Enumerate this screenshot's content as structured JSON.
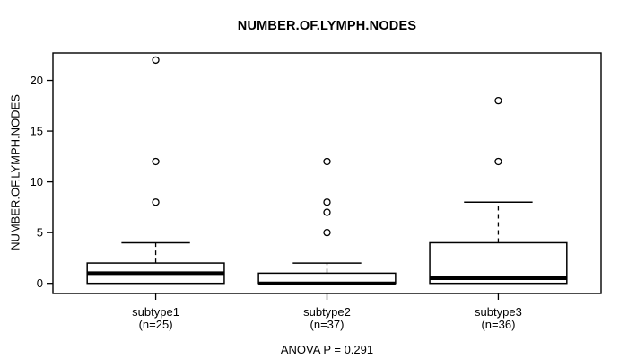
{
  "chart_data": {
    "type": "boxplot",
    "title": "NUMBER.OF.LYMPH.NODES",
    "ylabel": "NUMBER.OF.LYMPH.NODES",
    "annotation": "ANOVA P = 0.291",
    "ylim": [
      -1,
      22.7
    ],
    "yticks": [
      0,
      5,
      10,
      15,
      20
    ],
    "xlim": [
      0.4,
      3.6
    ],
    "box_width": 0.8,
    "cap_width": 0.4,
    "grid": "off",
    "legend": "none",
    "groups": [
      {
        "label": "subtype1",
        "n_label": "(n=25)",
        "position": 1,
        "q1": 0,
        "median": 1,
        "q3": 2,
        "whisker_low": 0,
        "whisker_high": 4,
        "outliers": [
          8,
          12,
          22
        ]
      },
      {
        "label": "subtype2",
        "n_label": "(n=37)",
        "position": 2,
        "q1": 0,
        "median": 0,
        "q3": 1,
        "whisker_low": 0,
        "whisker_high": 2,
        "outliers": [
          5,
          7,
          8,
          12
        ]
      },
      {
        "label": "subtype3",
        "n_label": "(n=36)",
        "position": 3,
        "q1": 0,
        "median": 0.5,
        "q3": 4,
        "whisker_low": 0,
        "whisker_high": 8,
        "outliers": [
          12,
          18
        ]
      }
    ],
    "colors": {
      "line": "#000000",
      "box_fill": "#ffffff",
      "background": "#ffffff"
    }
  }
}
